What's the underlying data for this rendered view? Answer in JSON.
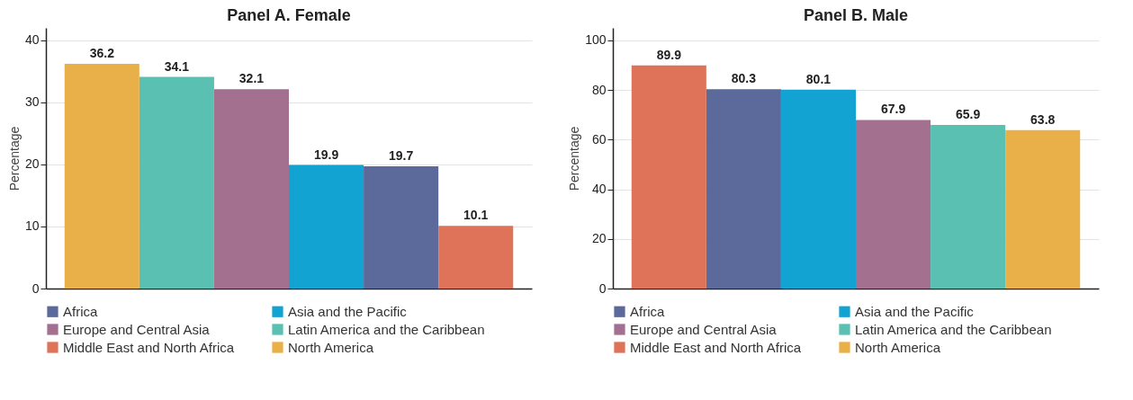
{
  "chart_data": [
    {
      "type": "bar",
      "title": "Panel A. Female",
      "ylabel": "Percentage",
      "categories": [
        null,
        null,
        null,
        null,
        null,
        null
      ],
      "ylim": [
        0,
        42
      ],
      "yticks": [
        0,
        10,
        20,
        30,
        40
      ],
      "grid": "y",
      "legend": "bottom",
      "data_labels": true,
      "series": [
        {
          "name": "Africa",
          "color": "#5b6a9a",
          "values": [
            null,
            null,
            null,
            null,
            19.7,
            null
          ]
        },
        {
          "name": "Asia and the Pacific",
          "color": "#12a3d3",
          "values": [
            null,
            null,
            null,
            19.9,
            null,
            null
          ]
        },
        {
          "name": "Europe and Central Asia",
          "color": "#a47090",
          "values": [
            null,
            null,
            32.1,
            null,
            null,
            null
          ]
        },
        {
          "name": "Latin America and the Caribbean",
          "color": "#5ac1b2",
          "values": [
            null,
            34.1,
            null,
            null,
            null,
            null
          ]
        },
        {
          "name": "Middle East and North Africa",
          "color": "#de735a",
          "values": [
            null,
            null,
            null,
            null,
            null,
            10.1
          ]
        },
        {
          "name": "North America",
          "color": "#e9b04a",
          "values": [
            36.2,
            null,
            null,
            null,
            null,
            null
          ]
        }
      ]
    },
    {
      "type": "bar",
      "title": "Panel B. Male",
      "ylabel": "Percentage",
      "categories": [
        null,
        null,
        null,
        null,
        null,
        null
      ],
      "ylim": [
        0,
        105
      ],
      "yticks": [
        0,
        20,
        40,
        60,
        80,
        100
      ],
      "grid": "y",
      "legend": "bottom",
      "data_labels": true,
      "series": [
        {
          "name": "Africa",
          "color": "#5b6a9a",
          "values": [
            null,
            80.3,
            null,
            null,
            null,
            null
          ]
        },
        {
          "name": "Asia and the Pacific",
          "color": "#12a3d3",
          "values": [
            null,
            null,
            80.1,
            null,
            null,
            null
          ]
        },
        {
          "name": "Europe and Central Asia",
          "color": "#a47090",
          "values": [
            null,
            null,
            null,
            67.9,
            null,
            null
          ]
        },
        {
          "name": "Latin America and the Caribbean",
          "color": "#5ac1b2",
          "values": [
            null,
            null,
            null,
            null,
            65.9,
            null
          ]
        },
        {
          "name": "Middle East and North Africa",
          "color": "#de735a",
          "values": [
            89.9,
            null,
            null,
            null,
            null,
            null
          ]
        },
        {
          "name": "North America",
          "color": "#e9b04a",
          "values": [
            null,
            null,
            null,
            null,
            null,
            63.8
          ]
        }
      ]
    }
  ]
}
